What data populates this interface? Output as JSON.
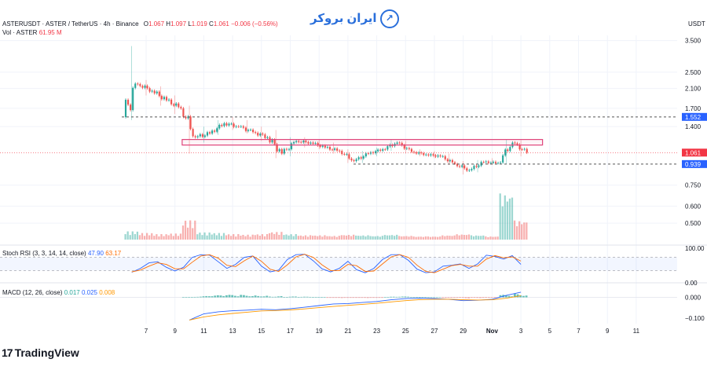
{
  "header": {
    "symbol_line": "ASTERUSDT · ASTER / TetherUS · 4h · Binance",
    "o_label": "O",
    "o_value": "1.067",
    "h_label": "H",
    "h_value": "1.097",
    "l_label": "L",
    "l_value": "1.019",
    "c_label": "C",
    "c_value": "1.061",
    "change": "−0.006 (−0.56%)",
    "vol_label": "Vol · ASTER",
    "vol_value": "61.95 M"
  },
  "brand": {
    "text": "ایران بروکر"
  },
  "footer": {
    "logo": "17",
    "name": "TradingView"
  },
  "currency": "USDT",
  "colors": {
    "up": "#26a69a",
    "down": "#ef5350",
    "box": "#e0457b",
    "rsi_k": "#2962ff",
    "rsi_d": "#ff6d00",
    "macd": "#2962ff",
    "signal": "#ff9800",
    "price_badge": "#f23645",
    "level_badge": "#2962ff"
  },
  "chart_data": [
    {
      "type": "candlestick",
      "title": "ASTERUSDT · ASTER / TetherUS · 4h · Binance",
      "y_scale": "log",
      "ylim": [
        0.42,
        3.7
      ],
      "yticks": [
        "3.500",
        "2.500",
        "2.100",
        "1.700",
        "1.400",
        "0.750",
        "0.600",
        "0.500"
      ],
      "xticks": [
        "7",
        "9",
        "11",
        "13",
        "15",
        "17",
        "19",
        "21",
        "23",
        "25",
        "27",
        "29",
        "Nov",
        "3",
        "5",
        "7",
        "9",
        "11"
      ],
      "last_price": "1.061",
      "levels": [
        {
          "label": "1.552",
          "value": 1.552,
          "style": "dashed"
        },
        {
          "label": "0.939",
          "value": 0.939,
          "style": "dashed"
        }
      ],
      "zone": {
        "low": 1.15,
        "high": 1.22,
        "from_day": 9.5,
        "to_day": 34.5
      },
      "candles_daily": [
        [
          6.0,
          1.55,
          3.3,
          1.5,
          2.2
        ],
        [
          7.0,
          2.2,
          2.3,
          1.95,
          2.05
        ],
        [
          8.0,
          2.05,
          2.15,
          1.75,
          1.85
        ],
        [
          9.0,
          1.85,
          1.95,
          1.6,
          1.7
        ],
        [
          10.0,
          1.7,
          1.75,
          1.05,
          1.25
        ],
        [
          11.0,
          1.25,
          1.4,
          1.18,
          1.3
        ],
        [
          12.0,
          1.3,
          1.5,
          1.28,
          1.45
        ],
        [
          13.0,
          1.45,
          1.55,
          1.35,
          1.4
        ],
        [
          14.0,
          1.4,
          1.5,
          1.3,
          1.32
        ],
        [
          15.0,
          1.32,
          1.4,
          1.2,
          1.25
        ],
        [
          16.0,
          1.25,
          1.35,
          1.0,
          1.05
        ],
        [
          17.0,
          1.05,
          1.25,
          1.02,
          1.2
        ],
        [
          18.0,
          1.2,
          1.25,
          1.12,
          1.18
        ],
        [
          19.0,
          1.18,
          1.22,
          1.1,
          1.12
        ],
        [
          20.0,
          1.12,
          1.18,
          1.05,
          1.08
        ],
        [
          21.0,
          1.08,
          1.1,
          0.95,
          0.97
        ],
        [
          22.0,
          0.97,
          1.08,
          0.95,
          1.05
        ],
        [
          23.0,
          1.05,
          1.12,
          1.02,
          1.1
        ],
        [
          24.0,
          1.1,
          1.22,
          1.08,
          1.18
        ],
        [
          25.0,
          1.18,
          1.2,
          1.05,
          1.07
        ],
        [
          26.0,
          1.07,
          1.1,
          1.02,
          1.04
        ],
        [
          27.0,
          1.04,
          1.08,
          1.0,
          1.02
        ],
        [
          28.0,
          1.02,
          1.05,
          0.93,
          0.94
        ],
        [
          29.0,
          0.94,
          0.97,
          0.84,
          0.88
        ],
        [
          30.0,
          0.88,
          0.98,
          0.86,
          0.96
        ],
        [
          31.0,
          0.96,
          1.0,
          0.93,
          0.95
        ],
        [
          32.0,
          0.95,
          1.22,
          0.94,
          1.18
        ],
        [
          33.0,
          1.18,
          1.21,
          1.02,
          1.061
        ]
      ],
      "volume_daily": [
        [
          6.0,
          0.15
        ],
        [
          7.0,
          0.12
        ],
        [
          8.0,
          0.1
        ],
        [
          9.0,
          0.11
        ],
        [
          10.0,
          0.35
        ],
        [
          11.0,
          0.13
        ],
        [
          12.0,
          0.12
        ],
        [
          13.0,
          0.1
        ],
        [
          14.0,
          0.09
        ],
        [
          15.0,
          0.1
        ],
        [
          16.0,
          0.14
        ],
        [
          17.0,
          0.1
        ],
        [
          18.0,
          0.08
        ],
        [
          19.0,
          0.08
        ],
        [
          20.0,
          0.07
        ],
        [
          21.0,
          0.09
        ],
        [
          22.0,
          0.08
        ],
        [
          23.0,
          0.07
        ],
        [
          24.0,
          0.09
        ],
        [
          25.0,
          0.07
        ],
        [
          26.0,
          0.06
        ],
        [
          27.0,
          0.06
        ],
        [
          28.0,
          0.08
        ],
        [
          29.0,
          0.1
        ],
        [
          30.0,
          0.08
        ],
        [
          31.0,
          0.06
        ],
        [
          32.0,
          0.85
        ],
        [
          33.0,
          0.35
        ]
      ]
    },
    {
      "type": "line",
      "title": "Stoch RSI (3, 3, 14, 14, close)",
      "values": [
        "47.90",
        "63.17"
      ],
      "ylim": [
        0,
        100
      ],
      "yticks": [
        "100.00",
        "0.00"
      ],
      "bands": [
        20,
        80
      ],
      "series": [
        {
          "name": "K",
          "x": [
            6.0,
            6.6,
            7.2,
            7.8,
            8.4,
            9.0,
            9.6,
            10.2,
            10.8,
            11.4,
            12.0,
            12.6,
            13.2,
            13.8,
            14.4,
            15.0,
            15.6,
            16.2,
            16.8,
            17.4,
            18.0,
            18.6,
            19.2,
            19.8,
            20.4,
            21.0,
            21.6,
            22.2,
            22.8,
            23.4,
            24.0,
            24.6,
            25.2,
            25.8,
            26.4,
            27.0,
            27.6,
            28.2,
            28.8,
            29.4,
            30.0,
            30.6,
            31.2,
            31.8,
            32.4,
            33.0
          ],
          "y": [
            12,
            30,
            55,
            60,
            35,
            18,
            35,
            80,
            92,
            90,
            60,
            30,
            48,
            80,
            86,
            40,
            14,
            22,
            70,
            92,
            94,
            64,
            28,
            14,
            30,
            62,
            24,
            10,
            30,
            70,
            92,
            92,
            66,
            26,
            10,
            14,
            40,
            44,
            50,
            30,
            50,
            90,
            84,
            72,
            88,
            48
          ]
        },
        {
          "name": "D",
          "x": [
            6.0,
            6.6,
            7.2,
            7.8,
            8.4,
            9.0,
            9.6,
            10.2,
            10.8,
            11.4,
            12.0,
            12.6,
            13.2,
            13.8,
            14.4,
            15.0,
            15.6,
            16.2,
            16.8,
            17.4,
            18.0,
            18.6,
            19.2,
            19.8,
            20.4,
            21.0,
            21.6,
            22.2,
            22.8,
            23.4,
            24.0,
            24.6,
            25.2,
            25.8,
            26.4,
            27.0,
            27.6,
            28.2,
            28.8,
            29.4,
            30.0,
            30.6,
            31.2,
            31.8,
            32.4,
            33.0
          ],
          "y": [
            14,
            22,
            40,
            55,
            48,
            28,
            28,
            58,
            86,
            92,
            76,
            44,
            38,
            64,
            86,
            62,
            26,
            16,
            46,
            82,
            94,
            80,
            46,
            20,
            20,
            48,
            42,
            16,
            18,
            50,
            82,
            92,
            80,
            44,
            16,
            10,
            26,
            42,
            48,
            40,
            40,
            72,
            88,
            78,
            82,
            63
          ]
        }
      ]
    },
    {
      "type": "bar+line",
      "title": "MACD (12, 26, close)",
      "values": [
        "0.017",
        "0.025",
        "0.008"
      ],
      "ylim": [
        -0.12,
        0.04
      ],
      "yticks": [
        "0.000",
        "−0.100"
      ],
      "series": [
        {
          "name": "MACD",
          "x": [
            10.0,
            11.0,
            12.0,
            13.0,
            14.0,
            15.0,
            16.0,
            17.0,
            18.0,
            19.0,
            20.0,
            21.0,
            22.0,
            23.0,
            24.0,
            25.0,
            26.0,
            27.0,
            28.0,
            29.0,
            30.0,
            31.0,
            32.0,
            33.0
          ],
          "y": [
            -0.11,
            -0.08,
            -0.07,
            -0.065,
            -0.062,
            -0.058,
            -0.06,
            -0.055,
            -0.048,
            -0.04,
            -0.032,
            -0.03,
            -0.025,
            -0.02,
            -0.012,
            -0.006,
            -0.004,
            -0.006,
            -0.01,
            -0.016,
            -0.014,
            -0.01,
            0.01,
            0.025
          ]
        },
        {
          "name": "Signal",
          "x": [
            10.0,
            11.0,
            12.0,
            13.0,
            14.0,
            15.0,
            16.0,
            17.0,
            18.0,
            19.0,
            20.0,
            21.0,
            22.0,
            23.0,
            24.0,
            25.0,
            26.0,
            27.0,
            28.0,
            29.0,
            30.0,
            31.0,
            32.0,
            33.0
          ],
          "y": [
            -0.11,
            -0.095,
            -0.085,
            -0.078,
            -0.072,
            -0.066,
            -0.064,
            -0.061,
            -0.056,
            -0.05,
            -0.044,
            -0.039,
            -0.034,
            -0.029,
            -0.022,
            -0.016,
            -0.011,
            -0.009,
            -0.009,
            -0.012,
            -0.013,
            -0.012,
            -0.004,
            0.008
          ]
        },
        {
          "name": "Histogram",
          "x": [
            10.0,
            11.0,
            12.0,
            13.0,
            14.0,
            15.0,
            16.0,
            17.0,
            18.0,
            19.0,
            20.0,
            21.0,
            22.0,
            23.0,
            24.0,
            25.0,
            26.0,
            27.0,
            28.0,
            29.0,
            30.0,
            31.0,
            32.0,
            33.0
          ],
          "y": [
            0.002,
            0.006,
            0.01,
            0.012,
            0.012,
            0.01,
            0.006,
            0.004,
            0.003,
            0.002,
            -0.002,
            -0.003,
            -0.003,
            -0.002,
            0.003,
            0.004,
            0.002,
            0.0,
            -0.002,
            -0.004,
            -0.003,
            -0.002,
            0.012,
            0.017
          ]
        }
      ]
    }
  ]
}
